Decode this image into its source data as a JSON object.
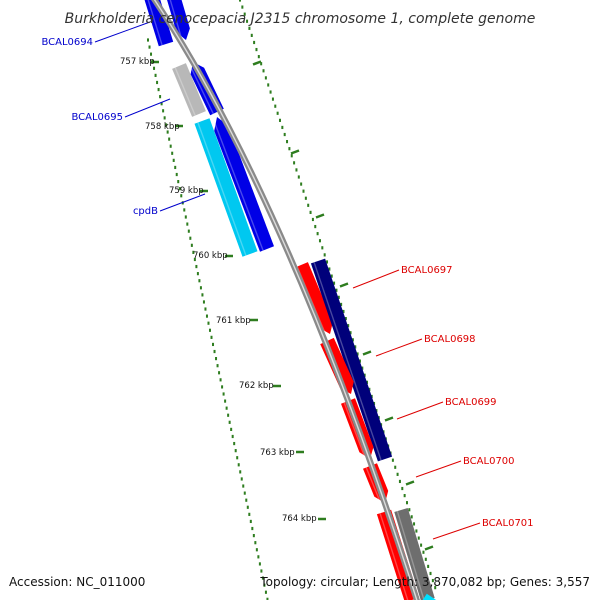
{
  "title": "Burkholderia cenocepacia J2315 chromosome 1, complete genome",
  "footer": {
    "accession": "Accession: NC_011000",
    "summary": "Topology: circular; Length: 3,870,082 bp; Genes: 3,557"
  },
  "colors": {
    "backbone": "#8a8a8a",
    "ticks": "#2e7d1f",
    "fwd_label": "#0000cc",
    "rev_label": "#dd0000"
  },
  "ticks": [
    {
      "label": "757 kbp"
    },
    {
      "label": "758 kbp"
    },
    {
      "label": "759 kbp"
    },
    {
      "label": "760 kbp"
    },
    {
      "label": "761 kbp"
    },
    {
      "label": "762 kbp"
    },
    {
      "label": "763 kbp"
    },
    {
      "label": "764 kbp"
    }
  ],
  "gene_labels": {
    "forward": [
      {
        "name": "BCAL0694"
      },
      {
        "name": "BCAL0695"
      },
      {
        "name": "cpdB"
      }
    ],
    "reverse": [
      {
        "name": "BCAL0697"
      },
      {
        "name": "BCAL0698"
      },
      {
        "name": "BCAL0699"
      },
      {
        "name": "BCAL0700"
      },
      {
        "name": "BCAL0701"
      }
    ]
  }
}
